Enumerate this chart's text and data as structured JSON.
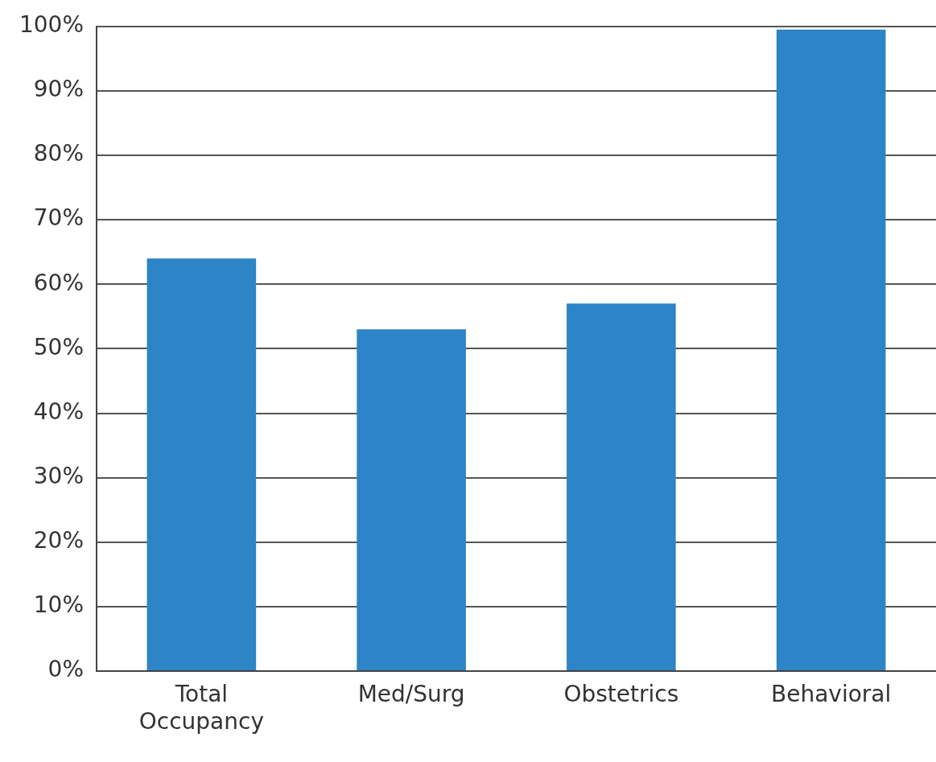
{
  "chart_data": {
    "type": "bar",
    "categories": [
      "Total Occupancy",
      "Med/Surg",
      "Obstetrics",
      "Behavioral"
    ],
    "values": [
      64,
      53,
      57,
      99.5
    ],
    "color": "#2d84c6",
    "ylim": [
      0,
      100
    ],
    "yticks": [
      {
        "value": 0,
        "label": "0%"
      },
      {
        "value": 10,
        "label": "10%"
      },
      {
        "value": 20,
        "label": "20%"
      },
      {
        "value": 30,
        "label": "30%"
      },
      {
        "value": 40,
        "label": "40%"
      },
      {
        "value": 50,
        "label": "50%"
      },
      {
        "value": 60,
        "label": "60%"
      },
      {
        "value": 70,
        "label": "70%"
      },
      {
        "value": 80,
        "label": "80%"
      },
      {
        "value": 90,
        "label": "90%"
      },
      {
        "value": 100,
        "label": "100%"
      }
    ],
    "grid": "y",
    "legend": false
  }
}
